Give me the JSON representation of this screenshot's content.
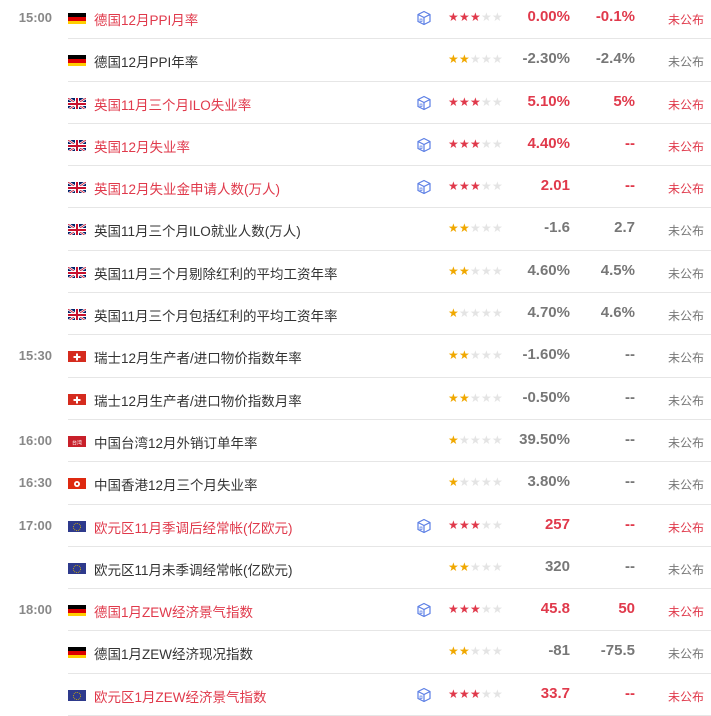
{
  "colors": {
    "highlight": "#e0394b",
    "normal": "#333333",
    "muted": "#777777",
    "star_red": "#e0394b",
    "star_gold": "#f0a800",
    "star_empty": "#e4e4e4",
    "cube": "#5b7ee5"
  },
  "rows": [
    {
      "time": "15:00",
      "flag": "germany-flag",
      "title": "德国12月PPI月率",
      "important": true,
      "has_cube": true,
      "stars": 3,
      "actual": "0.00%",
      "forecast": "-0.1%",
      "status": "未公布"
    },
    {
      "time": "",
      "flag": "germany-flag",
      "title": "德国12月PPI年率",
      "important": false,
      "has_cube": false,
      "stars": 2,
      "actual": "-2.30%",
      "forecast": "-2.4%",
      "status": "未公布"
    },
    {
      "time": "",
      "flag": "uk-flag",
      "title": "英国11月三个月ILO失业率",
      "important": true,
      "has_cube": true,
      "stars": 3,
      "actual": "5.10%",
      "forecast": "5%",
      "status": "未公布"
    },
    {
      "time": "",
      "flag": "uk-flag",
      "title": "英国12月失业率",
      "important": true,
      "has_cube": true,
      "stars": 3,
      "actual": "4.40%",
      "forecast": "--",
      "status": "未公布"
    },
    {
      "time": "",
      "flag": "uk-flag",
      "title": "英国12月失业金申请人数(万人)",
      "important": true,
      "has_cube": true,
      "stars": 3,
      "actual": "2.01",
      "forecast": "--",
      "status": "未公布"
    },
    {
      "time": "",
      "flag": "uk-flag",
      "title": "英国11月三个月ILO就业人数(万人)",
      "important": false,
      "has_cube": false,
      "stars": 2,
      "actual": "-1.6",
      "forecast": "2.7",
      "status": "未公布"
    },
    {
      "time": "",
      "flag": "uk-flag",
      "title": "英国11月三个月剔除红利的平均工资年率",
      "important": false,
      "has_cube": false,
      "stars": 2,
      "actual": "4.60%",
      "forecast": "4.5%",
      "status": "未公布"
    },
    {
      "time": "",
      "flag": "uk-flag",
      "title": "英国11月三个月包括红利的平均工资年率",
      "important": false,
      "has_cube": false,
      "stars": 1,
      "actual": "4.70%",
      "forecast": "4.6%",
      "status": "未公布"
    },
    {
      "time": "15:30",
      "flag": "switzerland-flag",
      "title": "瑞士12月生产者/进口物价指数年率",
      "important": false,
      "has_cube": false,
      "stars": 2,
      "actual": "-1.60%",
      "forecast": "--",
      "status": "未公布"
    },
    {
      "time": "",
      "flag": "switzerland-flag",
      "title": "瑞士12月生产者/进口物价指数月率",
      "important": false,
      "has_cube": false,
      "stars": 2,
      "actual": "-0.50%",
      "forecast": "--",
      "status": "未公布"
    },
    {
      "time": "16:00",
      "flag": "taiwan-flag",
      "title": "中国台湾12月外销订单年率",
      "important": false,
      "has_cube": false,
      "stars": 1,
      "actual": "39.50%",
      "forecast": "--",
      "status": "未公布"
    },
    {
      "time": "16:30",
      "flag": "hongkong-flag",
      "title": "中国香港12月三个月失业率",
      "important": false,
      "has_cube": false,
      "stars": 1,
      "actual": "3.80%",
      "forecast": "--",
      "status": "未公布"
    },
    {
      "time": "17:00",
      "flag": "eu-flag",
      "title": "欧元区11月季调后经常帐(亿欧元)",
      "important": true,
      "has_cube": true,
      "stars": 3,
      "actual": "257",
      "forecast": "--",
      "status": "未公布"
    },
    {
      "time": "",
      "flag": "eu-flag",
      "title": "欧元区11月未季调经常帐(亿欧元)",
      "important": false,
      "has_cube": false,
      "stars": 2,
      "actual": "320",
      "forecast": "--",
      "status": "未公布"
    },
    {
      "time": "18:00",
      "flag": "germany-flag",
      "title": "德国1月ZEW经济景气指数",
      "important": true,
      "has_cube": true,
      "stars": 3,
      "actual": "45.8",
      "forecast": "50",
      "status": "未公布"
    },
    {
      "time": "",
      "flag": "germany-flag",
      "title": "德国1月ZEW经济现况指数",
      "important": false,
      "has_cube": false,
      "stars": 2,
      "actual": "-81",
      "forecast": "-75.5",
      "status": "未公布"
    },
    {
      "time": "",
      "flag": "eu-flag",
      "title": "欧元区1月ZEW经济景气指数",
      "important": true,
      "has_cube": true,
      "stars": 3,
      "actual": "33.7",
      "forecast": "--",
      "status": "未公布"
    }
  ],
  "flag_labels": {
    "taiwan-flag": "台湾"
  }
}
